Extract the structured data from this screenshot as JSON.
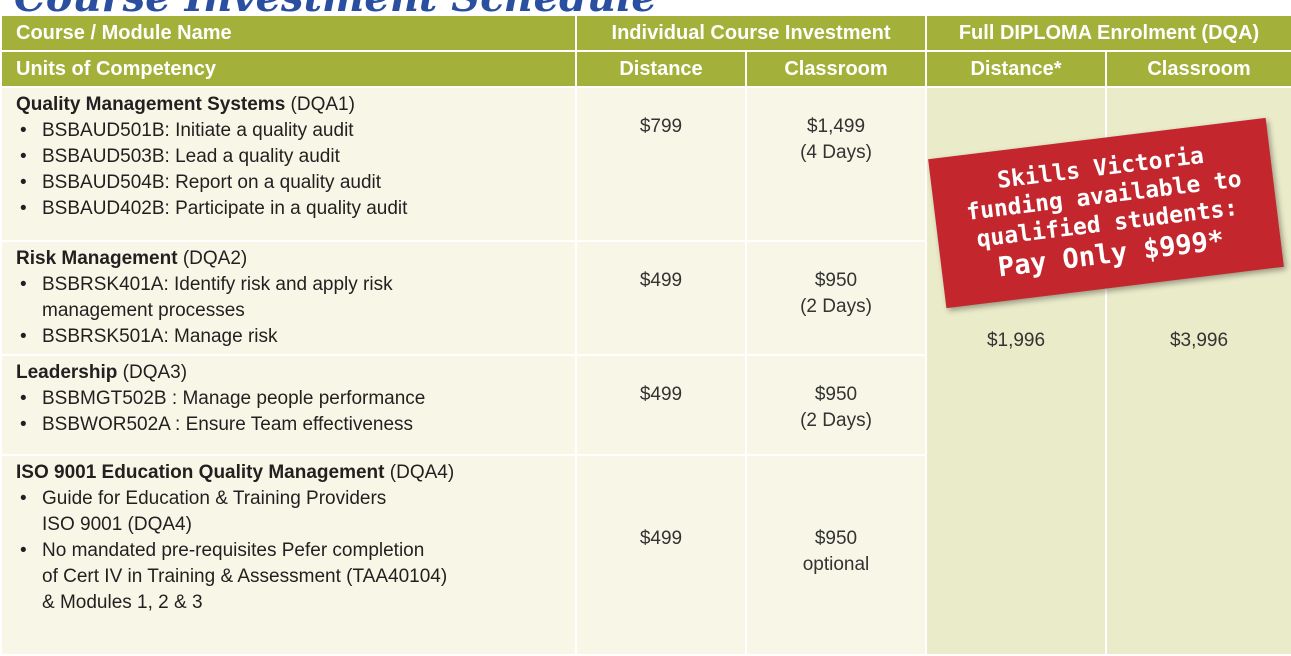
{
  "title": "Course Investment Schedule",
  "header": {
    "col1_line1": "Course / Module Name",
    "col1_line2": "Units of Competency",
    "group1": "Individual Course Investment",
    "group2": "Full DIPLOMA Enrolment (DQA)",
    "distance": "Distance",
    "classroom": "Classroom",
    "distance2": "Distance*",
    "classroom2": "Classroom"
  },
  "rows": [
    {
      "name": "Quality Management Systems",
      "code": "(DQA1)",
      "bullets": [
        [
          "BSBAUD501B: Initiate a quality audit"
        ],
        [
          "BSBAUD503B: Lead a quality audit"
        ],
        [
          "BSBAUD504B: Report on a quality audit"
        ],
        [
          "BSBAUD402B: Participate in a quality audit"
        ]
      ],
      "distance": "$799",
      "classroom": "$1,499",
      "classroom_note": "(4 Days)"
    },
    {
      "name": "Risk Management",
      "code": "(DQA2)",
      "bullets": [
        [
          "BSBRSK401A: Identify risk and apply risk",
          "management processes"
        ],
        [
          "BSBRSK501A: Manage risk"
        ]
      ],
      "distance": "$499",
      "classroom": "$950",
      "classroom_note": "(2 Days)"
    },
    {
      "name": "Leadership",
      "code": "(DQA3)",
      "bullets": [
        [
          "BSBMGT502B : Manage people performance"
        ],
        [
          "BSBWOR502A : Ensure Team effectiveness"
        ]
      ],
      "distance": "$499",
      "classroom": "$950",
      "classroom_note": "(2 Days)"
    },
    {
      "name": "ISO 9001 Education Quality Management",
      "code": "(DQA4)",
      "bullets": [
        [
          "Guide for Education & Training Providers",
          "ISO 9001 (DQA4)"
        ],
        [
          "No mandated pre-requisites Pefer completion",
          "of Cert IV in Training & Assessment (TAA40104)",
          "& Modules 1, 2 & 3"
        ]
      ],
      "distance": "$499",
      "classroom": "$950",
      "classroom_note": "optional"
    }
  ],
  "diploma": {
    "distance": "$1,996",
    "classroom": "$3,996"
  },
  "banner": [
    "Skills Victoria",
    "funding available to",
    "qualified students:",
    "Pay Only $999*"
  ]
}
